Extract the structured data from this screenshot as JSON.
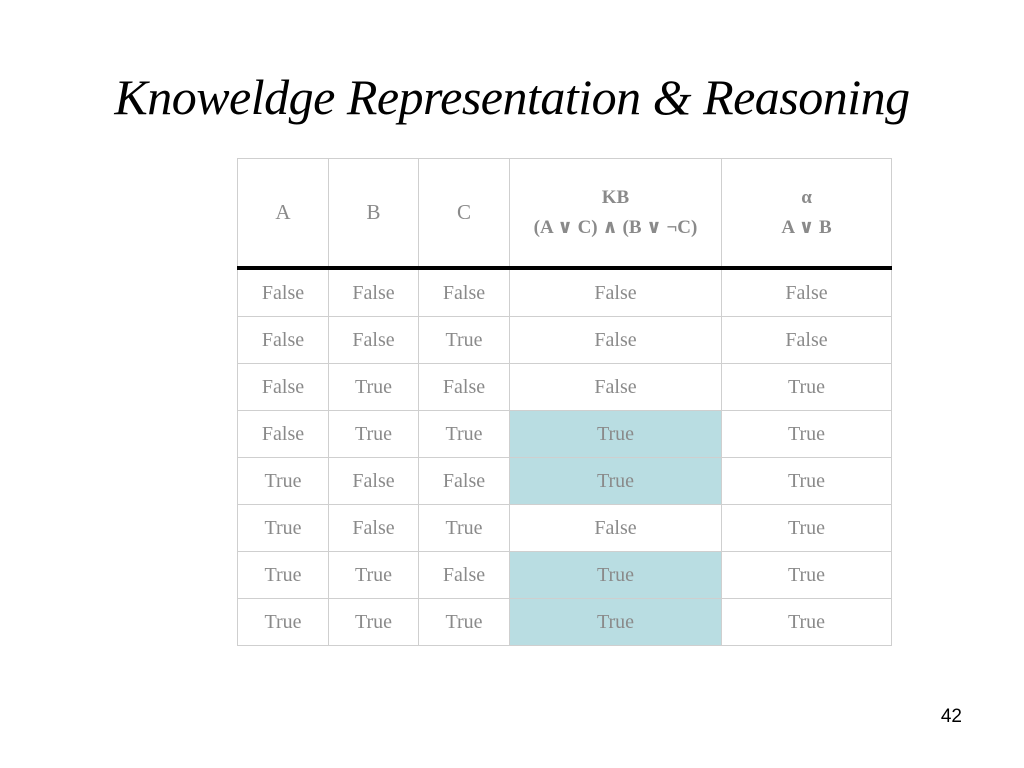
{
  "slide": {
    "title": "Knoweldge Representation & Reasoning",
    "page_number": "42"
  },
  "table": {
    "headers": [
      {
        "lines": [
          "A"
        ],
        "bold": false
      },
      {
        "lines": [
          "B"
        ],
        "bold": false
      },
      {
        "lines": [
          "C"
        ],
        "bold": false
      },
      {
        "lines": [
          "KB",
          "(A ∨ C) ∧ (B ∨ ¬C)"
        ],
        "bold": true
      },
      {
        "lines": [
          "α",
          "A ∨ B"
        ],
        "bold": true
      }
    ],
    "rows": [
      {
        "cells": [
          "False",
          "False",
          "False",
          "False",
          "False"
        ],
        "kb_highlight": false
      },
      {
        "cells": [
          "False",
          "False",
          "True",
          "False",
          "False"
        ],
        "kb_highlight": false
      },
      {
        "cells": [
          "False",
          "True",
          "False",
          "False",
          "True"
        ],
        "kb_highlight": false
      },
      {
        "cells": [
          "False",
          "True",
          "True",
          "True",
          "True"
        ],
        "kb_highlight": true
      },
      {
        "cells": [
          "True",
          "False",
          "False",
          "True",
          "True"
        ],
        "kb_highlight": true
      },
      {
        "cells": [
          "True",
          "False",
          "True",
          "False",
          "True"
        ],
        "kb_highlight": false
      },
      {
        "cells": [
          "True",
          "True",
          "False",
          "True",
          "True"
        ],
        "kb_highlight": true
      },
      {
        "cells": [
          "True",
          "True",
          "True",
          "True",
          "True"
        ],
        "kb_highlight": true
      }
    ],
    "colors": {
      "highlight": "#b9dde2",
      "cell_text": "#8a8a8a",
      "header_rule": "#000000",
      "grid": "#cfcfcf"
    }
  }
}
